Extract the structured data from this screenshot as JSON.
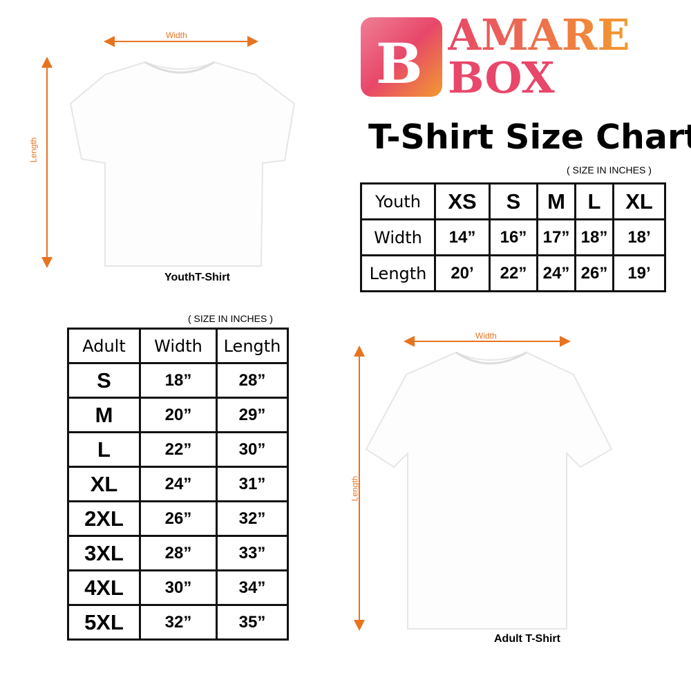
{
  "brand": {
    "name_line1": "AMARE",
    "name_line2": "BOX",
    "colors": {
      "pink": "#e8476a",
      "orange": "#f29a2e"
    }
  },
  "title": "T-Shirt Size Chart",
  "accent_color": "#e8731f",
  "youth": {
    "width_label": "Width",
    "length_label": "Length",
    "caption": "YouthT-Shirt",
    "note": "( SIZE IN INCHES )",
    "header": [
      "Youth",
      "XS",
      "S",
      "M",
      "L",
      "XL"
    ],
    "rows": [
      [
        "Width",
        "14”",
        "16”",
        "17”",
        "18”",
        "18’"
      ],
      [
        "Length",
        "20’",
        "22”",
        "24”",
        "26”",
        "19’"
      ]
    ]
  },
  "adult": {
    "width_label": "Width",
    "length_label": "Length",
    "caption": "Adult T-Shirt",
    "note": "( SIZE IN INCHES )",
    "header": [
      "Adult",
      "Width",
      "Length"
    ],
    "rows": [
      [
        "S",
        "18”",
        "28”"
      ],
      [
        "M",
        "20”",
        "29”"
      ],
      [
        "L",
        "22”",
        "30”"
      ],
      [
        "XL",
        "24”",
        "31”"
      ],
      [
        "2XL",
        "26”",
        "32”"
      ],
      [
        "3XL",
        "28”",
        "33”"
      ],
      [
        "4XL",
        "30”",
        "34”"
      ],
      [
        "5XL",
        "32”",
        "35”"
      ]
    ]
  }
}
